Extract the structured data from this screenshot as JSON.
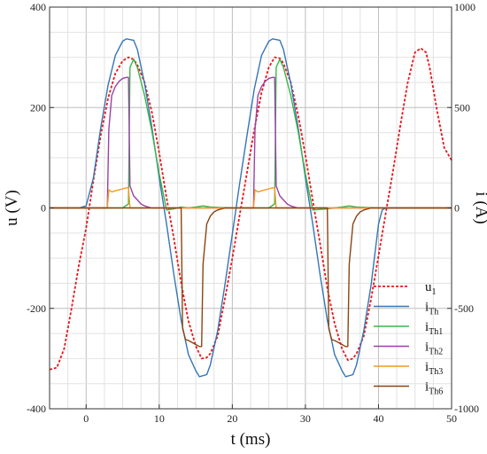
{
  "chart_data": {
    "type": "line",
    "title": "",
    "xlabel": "t (ms)",
    "ylabel_left": "u (V)",
    "ylabel_right": "i (A)",
    "xlim": [
      -5,
      50
    ],
    "ylim_left": [
      -400,
      400
    ],
    "ylim_right": [
      -1000,
      1000
    ],
    "x_ticks": [
      0,
      10,
      20,
      30,
      40,
      50
    ],
    "x_tick_labels": [
      "0",
      "10",
      "20",
      "30",
      "40",
      "50"
    ],
    "y_left_ticks": [
      -400,
      -200,
      0,
      200,
      400
    ],
    "y_left_tick_labels": [
      "-400",
      "-200",
      "0",
      "200",
      "400"
    ],
    "y_right_ticks": [
      -1000,
      -500,
      0,
      500,
      1000
    ],
    "y_right_tick_labels": [
      "-1000",
      "-500",
      "0",
      "500",
      "1000"
    ],
    "grid": true,
    "legend_position": "bottom-right",
    "series": [
      {
        "name": "u1",
        "label_main": "u",
        "label_sub": "1",
        "axis": "left",
        "color": "#e8171b",
        "dashed": true,
        "x": [
          -5,
          -4,
          -3,
          -2,
          -1,
          0,
          1,
          2,
          3,
          4,
          5,
          5.8,
          6.5,
          7,
          8,
          9,
          10,
          11,
          12,
          13,
          14,
          15,
          15.8,
          16.5,
          17,
          18,
          19,
          20,
          21,
          22,
          23,
          24,
          25,
          25.8,
          26.5,
          27,
          28,
          29,
          30,
          31,
          32,
          33,
          34,
          35,
          35.8,
          36.5,
          37,
          38,
          39,
          40,
          41,
          42,
          43,
          44,
          45,
          45.8,
          46.5,
          47,
          48,
          49,
          50
        ],
        "y": [
          -322,
          -318,
          -280,
          -200,
          -115,
          -40,
          55,
          145,
          218,
          268,
          293,
          300,
          296,
          285,
          250,
          190,
          110,
          20,
          -60,
          -150,
          -225,
          -275,
          -300,
          -298,
          -290,
          -255,
          -180,
          -100,
          -15,
          70,
          155,
          230,
          280,
          300,
          298,
          288,
          250,
          185,
          105,
          15,
          -70,
          -160,
          -230,
          -280,
          -303,
          -300,
          -290,
          -255,
          -180,
          -95,
          -10,
          75,
          165,
          250,
          310,
          318,
          310,
          280,
          195,
          120,
          95
        ]
      },
      {
        "name": "iTh",
        "label_main": "i",
        "label_sub": "Th",
        "axis": "right",
        "color": "#3575b5",
        "dashed": false,
        "x": [
          -5,
          -1,
          0,
          1,
          2,
          3,
          4,
          5,
          5.5,
          6.5,
          7,
          8,
          9,
          10,
          11,
          12,
          13,
          14,
          15,
          15.5,
          16.5,
          17,
          18,
          19,
          20,
          21,
          22,
          23,
          24,
          25,
          25.5,
          26.5,
          27,
          28,
          29,
          30,
          31,
          32,
          33,
          34,
          35,
          35.5,
          36.5,
          37,
          38,
          39,
          40,
          40.5,
          41,
          45,
          50
        ],
        "y": [
          0,
          0,
          10,
          150,
          400,
          610,
          760,
          830,
          842,
          835,
          790,
          620,
          400,
          150,
          -80,
          -330,
          -560,
          -730,
          -810,
          -840,
          -830,
          -780,
          -610,
          -380,
          -130,
          120,
          360,
          590,
          760,
          830,
          842,
          835,
          790,
          620,
          400,
          150,
          -80,
          -330,
          -560,
          -730,
          -810,
          -840,
          -830,
          -780,
          -610,
          -380,
          -80,
          -10,
          0,
          0,
          0
        ]
      },
      {
        "name": "iTh1",
        "label_main": "i",
        "label_sub": "Th1",
        "axis": "right",
        "color": "#3cb54a",
        "dashed": false,
        "x": [
          -5,
          3,
          4,
          5,
          5.8,
          6,
          6.5,
          7,
          8,
          9,
          10,
          11,
          12,
          13,
          14,
          15,
          16,
          17,
          20,
          23,
          24,
          25,
          25.8,
          26,
          26.5,
          27,
          28,
          29,
          30,
          31,
          33,
          35,
          36,
          37,
          40,
          45,
          50
        ],
        "y": [
          0,
          0,
          0,
          0,
          20,
          700,
          740,
          700,
          560,
          380,
          170,
          -10,
          -5,
          5,
          0,
          5,
          10,
          5,
          0,
          0,
          0,
          0,
          20,
          700,
          740,
          700,
          560,
          380,
          170,
          -10,
          -5,
          5,
          10,
          5,
          0,
          0,
          0
        ]
      },
      {
        "name": "iTh2",
        "label_main": "i",
        "label_sub": "Th2",
        "axis": "right",
        "color": "#9b41a8",
        "dashed": false,
        "x": [
          -5,
          2.9,
          3.1,
          3.5,
          4,
          4.5,
          5,
          5.5,
          5.8,
          6,
          6.5,
          7,
          7.5,
          8,
          8.5,
          9,
          14,
          20,
          22.9,
          23.1,
          23.5,
          24,
          24.5,
          25,
          25.5,
          25.8,
          26,
          26.5,
          27,
          27.5,
          28,
          28.5,
          29,
          34,
          40,
          45,
          50
        ],
        "y": [
          0,
          0,
          390,
          560,
          605,
          630,
          645,
          650,
          650,
          110,
          60,
          40,
          20,
          10,
          5,
          0,
          0,
          0,
          0,
          390,
          560,
          605,
          630,
          645,
          650,
          650,
          110,
          60,
          40,
          20,
          10,
          5,
          0,
          0,
          0,
          0,
          0
        ]
      },
      {
        "name": "iTh3",
        "label_main": "i",
        "label_sub": "Th3",
        "axis": "right",
        "color": "#f39a1f",
        "dashed": false,
        "x": [
          -5,
          2.9,
          3.1,
          3.5,
          4,
          4.5,
          5,
          5.5,
          5.8,
          6,
          7,
          10,
          20,
          22.9,
          23.1,
          23.5,
          24,
          24.5,
          25,
          25.5,
          25.8,
          26,
          27,
          30,
          40,
          50
        ],
        "y": [
          0,
          0,
          90,
          80,
          85,
          90,
          95,
          100,
          100,
          0,
          0,
          0,
          0,
          0,
          90,
          80,
          85,
          90,
          95,
          100,
          100,
          0,
          0,
          0,
          0,
          0
        ]
      },
      {
        "name": "iTh6",
        "label_main": "i",
        "label_sub": "Th6",
        "axis": "right",
        "color": "#8b4513",
        "dashed": false,
        "x": [
          -5,
          10,
          13,
          13.2,
          13.6,
          14,
          14.5,
          15,
          15.5,
          15.8,
          16,
          16.5,
          17,
          17.5,
          18,
          19,
          25,
          33,
          33.2,
          33.6,
          34,
          34.5,
          35,
          35.5,
          35.8,
          36,
          36.5,
          37,
          37.5,
          38,
          39,
          45,
          50
        ],
        "y": [
          0,
          0,
          0,
          -600,
          -655,
          -660,
          -670,
          -680,
          -690,
          -690,
          -280,
          -80,
          -40,
          -20,
          -10,
          0,
          0,
          0,
          -600,
          -655,
          -660,
          -670,
          -680,
          -690,
          -690,
          -280,
          -80,
          -40,
          -20,
          -10,
          0,
          0,
          0
        ]
      }
    ]
  }
}
